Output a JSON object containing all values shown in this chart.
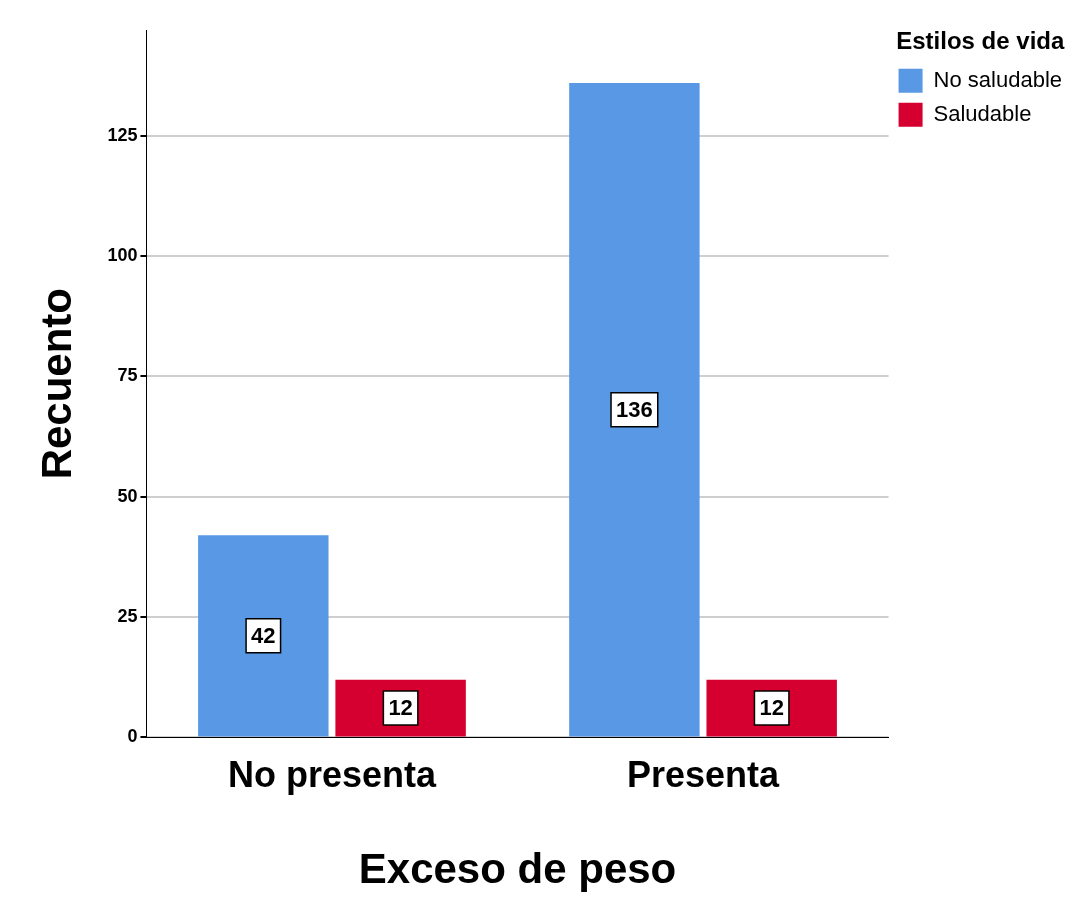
{
  "chart_data": {
    "type": "bar",
    "xlabel": "Exceso de peso",
    "ylabel": "Recuento",
    "legend_title": "Estilos de vida",
    "categories": [
      "No presenta",
      "Presenta"
    ],
    "series": [
      {
        "name": "No saludable",
        "color": "#5898e4",
        "values": [
          42,
          136
        ]
      },
      {
        "name": "Saludable",
        "color": "#d5002f",
        "values": [
          12,
          12
        ]
      }
    ],
    "ylim": [
      0,
      147
    ],
    "yticks": [
      0,
      25,
      50,
      75,
      100,
      125
    ],
    "grid": "y",
    "legend": "top right",
    "data_labels": true
  }
}
